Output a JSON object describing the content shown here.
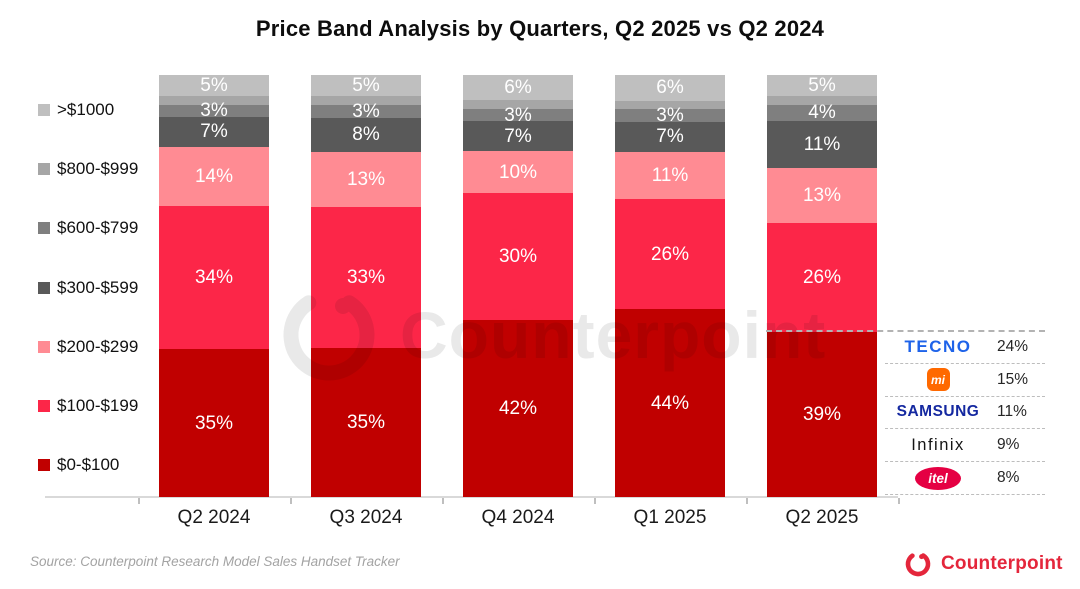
{
  "title": "Price Band Analysis by Quarters, Q2 2025 vs Q2 2024",
  "source_note": "Source: Counterpoint Research Model Sales Handset Tracker",
  "watermark_text": "Counterpoint",
  "footer_brand_text": "Counterpoint",
  "colors": {
    "band_0_100": "#c00000",
    "band_100_199": "#fc2648",
    "band_200_299": "#ff8b93",
    "band_300_599": "#595959",
    "band_600_799": "#7f7f7f",
    "band_800_999": "#a6a6a6",
    "band_1000_plus": "#bfbfbf",
    "counterpoint_red": "#e4263b",
    "axis_line": "#d9d9d9"
  },
  "legend": [
    {
      "label": ">$1000",
      "color": "#bfbfbf"
    },
    {
      "label": "$800-$999",
      "color": "#a6a6a6"
    },
    {
      "label": "$600-$799",
      "color": "#7f7f7f"
    },
    {
      "label": "$300-$599",
      "color": "#595959"
    },
    {
      "label": "$200-$299",
      "color": "#ff8b93"
    },
    {
      "label": "$100-$199",
      "color": "#fc2648"
    },
    {
      "label": "$0-$100",
      "color": "#c00000"
    }
  ],
  "chart_data": {
    "type": "bar",
    "stacked": true,
    "percent": true,
    "title": "Price Band Analysis by Quarters, Q2 2025 vs Q2 2024",
    "xlabel": "",
    "ylabel": "",
    "ylim": [
      0,
      100
    ],
    "grid": false,
    "legend_position": "left",
    "bar_label_color": "#ffffff",
    "categories": [
      "Q2 2024",
      "Q3 2024",
      "Q4 2024",
      "Q1 2025",
      "Q2 2025"
    ],
    "series": [
      {
        "name": "$0-$100",
        "color": "#c00000",
        "values": [
          35,
          35,
          42,
          44,
          39
        ],
        "labeled": true
      },
      {
        "name": "$100-$199",
        "color": "#fc2648",
        "values": [
          34,
          33,
          30,
          26,
          26
        ],
        "labeled": true
      },
      {
        "name": "$200-$299",
        "color": "#ff8b93",
        "values": [
          14,
          13,
          10,
          11,
          13
        ],
        "labeled": true
      },
      {
        "name": "$300-$599",
        "color": "#595959",
        "values": [
          7,
          8,
          7,
          7,
          11
        ],
        "labeled": true
      },
      {
        "name": "$600-$799",
        "color": "#7f7f7f",
        "values": [
          3,
          3,
          3,
          3,
          4
        ],
        "labeled": true
      },
      {
        "name": "$800-$999",
        "color": "#a6a6a6",
        "values": [
          2,
          2,
          2,
          2,
          2
        ],
        "labeled": false
      },
      {
        "name": ">$1000",
        "color": "#bfbfbf",
        "values": [
          5,
          5,
          6,
          6,
          5
        ],
        "labeled": true
      }
    ],
    "annotation": {
      "description": "Dashed leader from top of Q2 2025 $0-$100 segment to brand share table",
      "category": "Q2 2025",
      "band": "$0-$100"
    }
  },
  "callout_table": {
    "rows": [
      {
        "brand": "tecno",
        "logo_text": "TECNO",
        "share": "24%"
      },
      {
        "brand": "xiaomi",
        "logo_text": "mi",
        "share": "15%"
      },
      {
        "brand": "samsung",
        "logo_text": "SAMSUNG",
        "share": "11%"
      },
      {
        "brand": "infinix",
        "logo_text": "Infinix",
        "share": "9%"
      },
      {
        "brand": "itel",
        "logo_text": "itel",
        "share": "8%"
      }
    ]
  }
}
